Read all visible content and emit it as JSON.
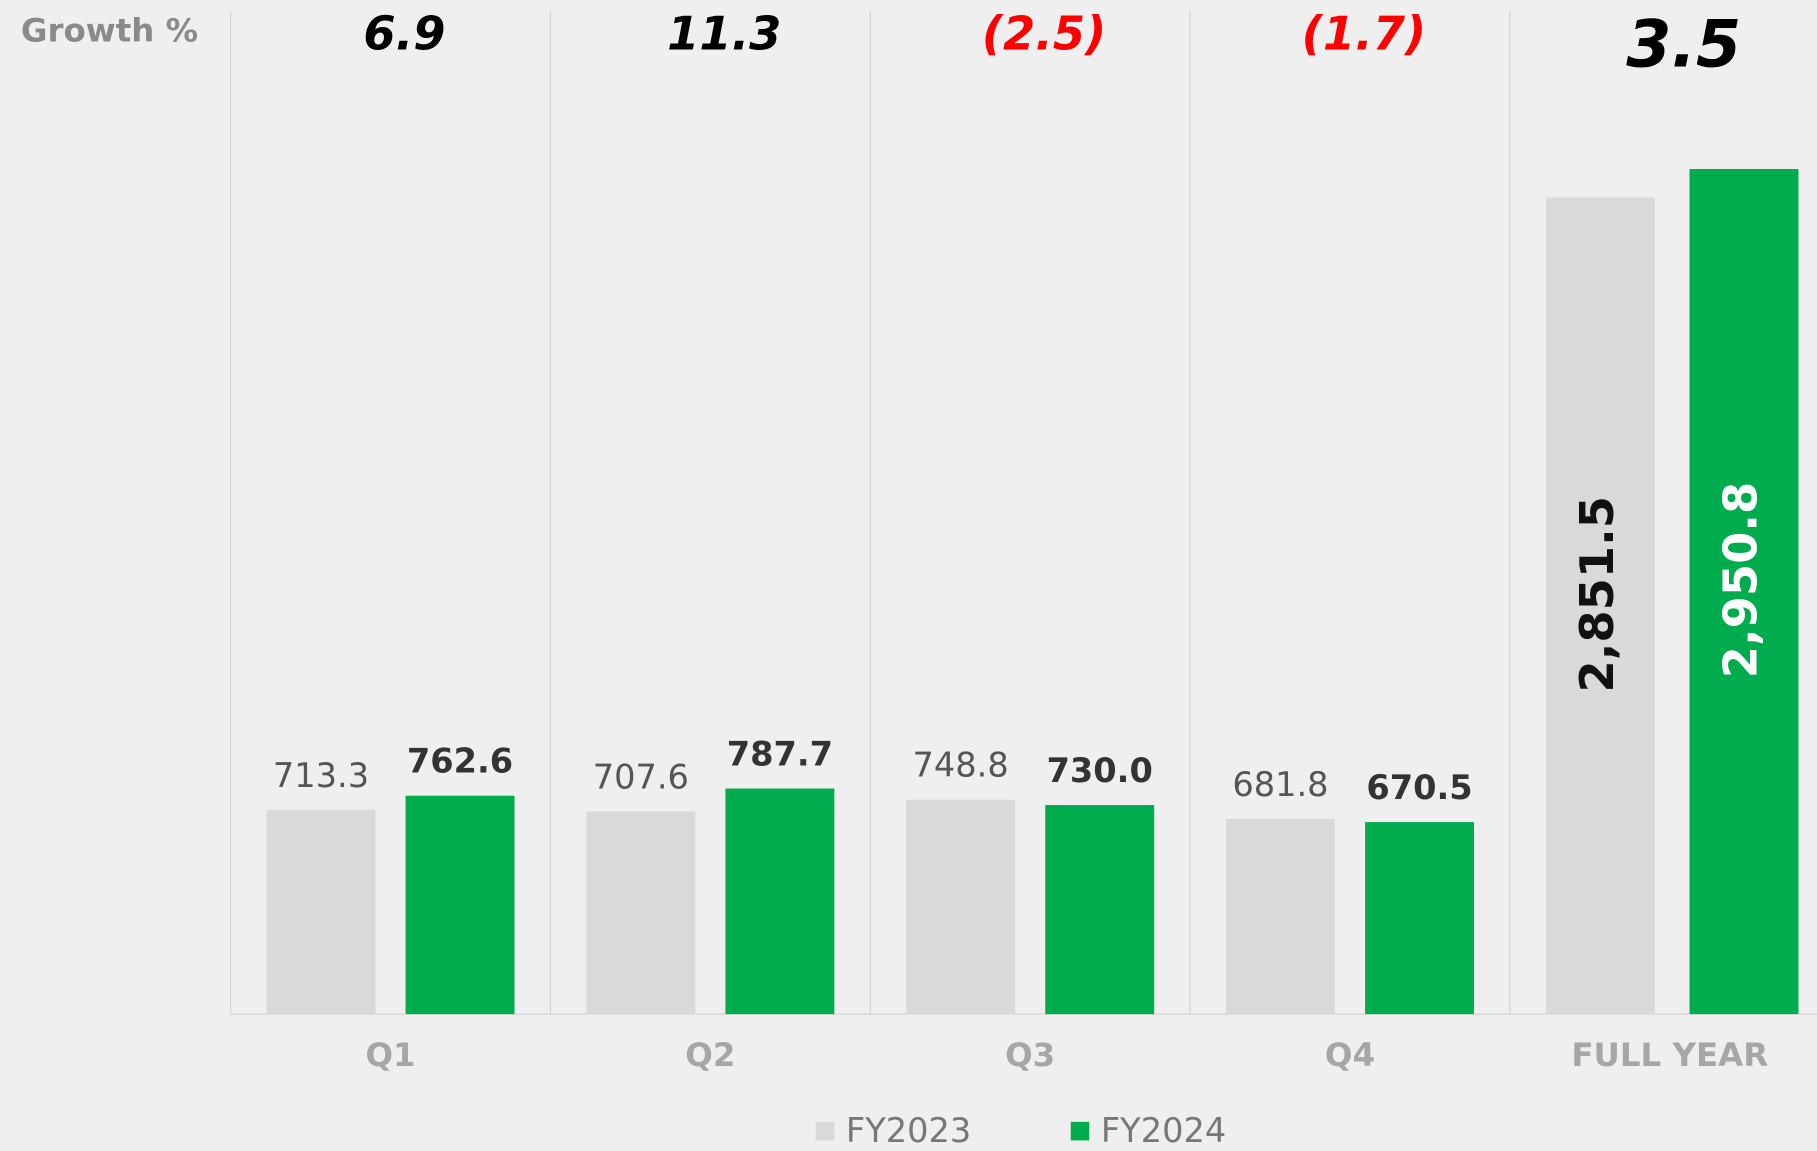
{
  "chart_data": {
    "type": "bar",
    "row_label": "Growth %",
    "categories": [
      "Q1",
      "Q2",
      "Q3",
      "Q4",
      "FULL YEAR"
    ],
    "growth": {
      "values": [
        6.9,
        11.3,
        -2.5,
        -1.7,
        3.5
      ],
      "value_labels": [
        "6.9",
        "11.3",
        "(2.5)",
        "(1.7)",
        "3.5"
      ],
      "color": "#000000",
      "negative_color": "#ff0000"
    },
    "series": [
      {
        "name": "FY2023",
        "color": "#d9d9d9",
        "values": [
          713.3,
          707.6,
          748.8,
          681.8,
          2851.5
        ],
        "value_labels": [
          "713.3",
          "707.6",
          "748.8",
          "681.8",
          "2,851.5"
        ]
      },
      {
        "name": "FY2024",
        "color": "#00ac4e",
        "values": [
          762.6,
          787.7,
          730.0,
          670.5,
          2950.8
        ],
        "value_labels": [
          "762.6",
          "787.7",
          "730.0",
          "670.5",
          "2,950.8"
        ]
      }
    ],
    "ylim": [
      0,
      3500
    ]
  }
}
